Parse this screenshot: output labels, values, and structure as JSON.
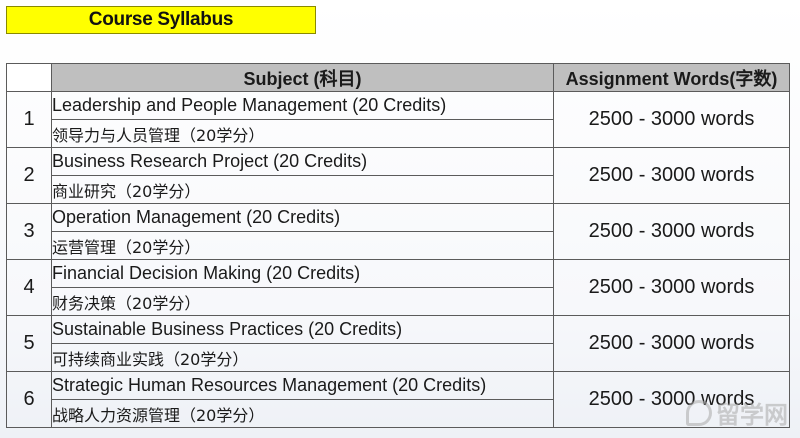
{
  "title": "Course Syllabus",
  "table": {
    "headers": {
      "number": "",
      "subject": "Subject (科目)",
      "words": "Assignment Words(字数)"
    },
    "rows": [
      {
        "num": "1",
        "subject_en": "Leadership and People Management (20 Credits)",
        "subject_cn": "领导力与人员管理（20学分）",
        "words": "2500 - 3000 words"
      },
      {
        "num": "2",
        "subject_en": "Business Research Project (20 Credits)",
        "subject_cn": "商业研究（20学分）",
        "words": "2500 - 3000 words"
      },
      {
        "num": "3",
        "subject_en": "Operation Management (20 Credits)",
        "subject_cn": "运营管理（20学分）",
        "words": "2500 - 3000 words"
      },
      {
        "num": "4",
        "subject_en": "Financial Decision Making (20 Credits)",
        "subject_cn": "财务决策（20学分）",
        "words": "2500 - 3000 words"
      },
      {
        "num": "5",
        "subject_en": "Sustainable Business Practices (20 Credits)",
        "subject_cn": "可持续商业实践（20学分）",
        "words": "2500 - 3000 words"
      },
      {
        "num": "6",
        "subject_en": "Strategic Human Resources Management (20 Credits)",
        "subject_cn": "战略人力资源管理（20学分）",
        "words": "2500 - 3000 words"
      }
    ]
  },
  "watermark": {
    "text": "留学网"
  }
}
